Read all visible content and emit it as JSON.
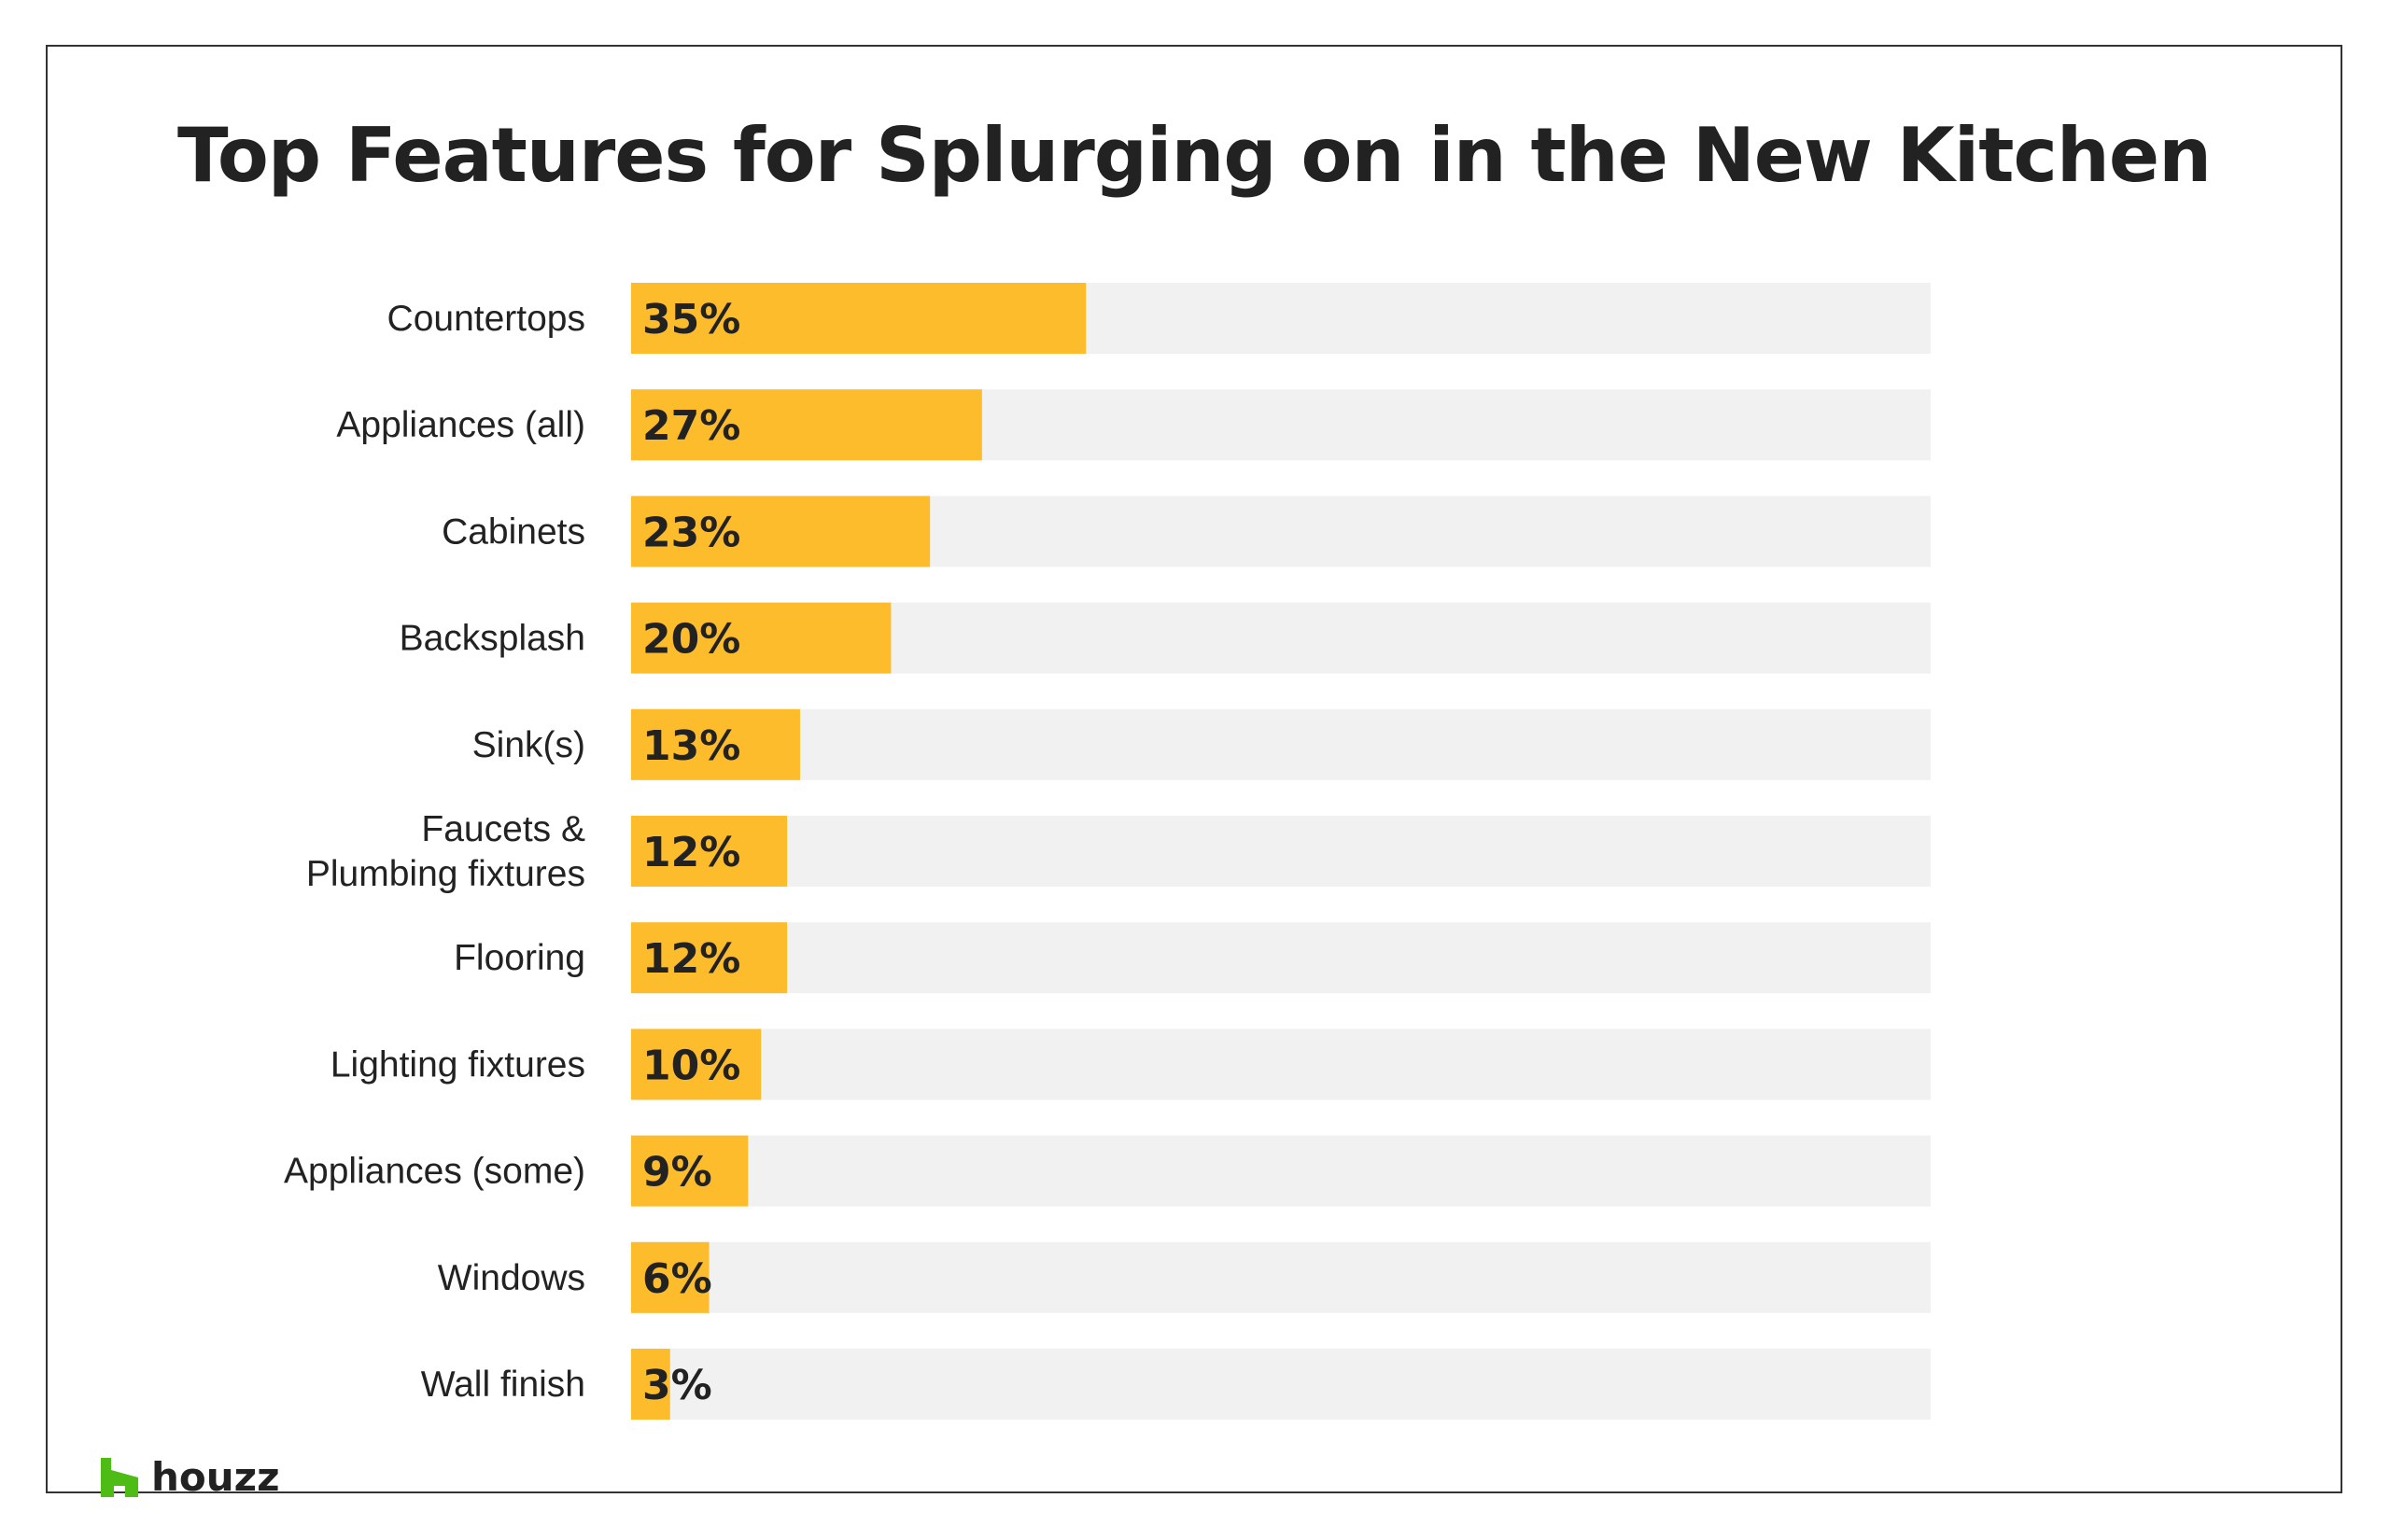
{
  "title": "Top Features for Splurging on in the New Kitchen",
  "logo": {
    "text": "houzz",
    "icon": "houzz-h-icon",
    "color": "#4DBC15"
  },
  "colors": {
    "bar": "#FDBC2C",
    "track": "#F1F1F1",
    "text": "#222222"
  },
  "chart_data": {
    "type": "bar",
    "orientation": "horizontal",
    "categories": [
      [
        "Countertops"
      ],
      [
        "Appliances (all)"
      ],
      [
        "Cabinets"
      ],
      [
        "Backsplash"
      ],
      [
        "Sink(s)"
      ],
      [
        "Faucets &",
        "Plumbing fixtures"
      ],
      [
        "Flooring"
      ],
      [
        "Lighting fixtures"
      ],
      [
        "Appliances (some)"
      ],
      [
        "Windows"
      ],
      [
        "Wall finish"
      ]
    ],
    "values": [
      35,
      27,
      23,
      20,
      13,
      12,
      12,
      10,
      9,
      6,
      3
    ],
    "value_labels": [
      "35%",
      "27%",
      "23%",
      "20%",
      "13%",
      "12%",
      "12%",
      "10%",
      "9%",
      "6%",
      "3%"
    ],
    "unit": "%",
    "xlim": [
      0,
      100
    ],
    "grid": false,
    "legend": "none"
  }
}
